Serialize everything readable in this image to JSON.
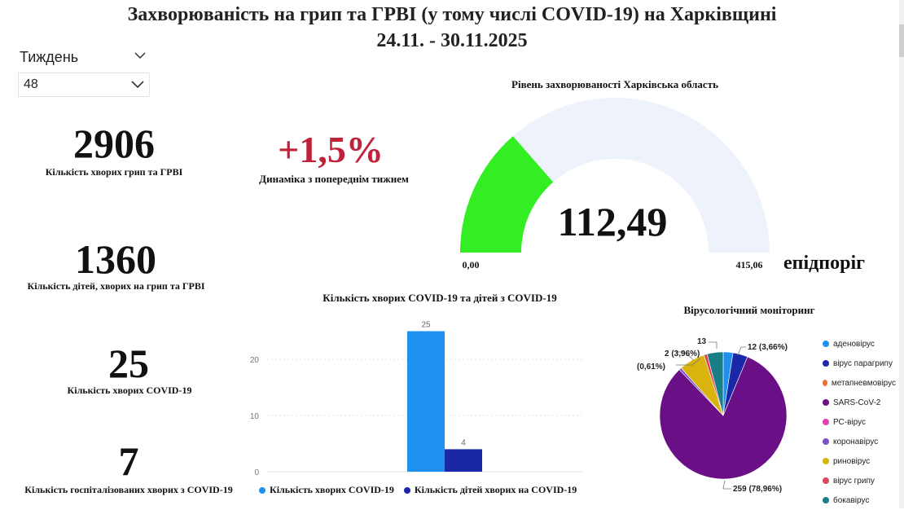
{
  "header": {
    "title": "Захворюваність на грип та ГРВІ (у тому числі COVID-19) на Харківщині",
    "period": "24.11. - 30.11.2025"
  },
  "week_filter": {
    "label": "Тиждень",
    "selected": "48"
  },
  "kpis": {
    "flu_arvi": {
      "value": "2906",
      "caption": "Кількість хворих грип та ГРВІ"
    },
    "children_flu_arvi": {
      "value": "1360",
      "caption": "Кількість дітей, хворих на грип та ГРВІ"
    },
    "covid": {
      "value": "25",
      "caption": "Кількість хворих COVID-19"
    },
    "covid_hospitalized": {
      "value": "7",
      "caption": "Кількість госпіталізованих хворих з COVID-19"
    },
    "dynamics": {
      "value": "+1,5%",
      "caption": "Динаміка з попереднім тижнем",
      "color": "#c0223a"
    }
  },
  "gauge": {
    "title": "Рівень захворюваності Харківська область",
    "value_label": "112,49",
    "value": 112.49,
    "min_label": "0,00",
    "min": 0,
    "max_label": "415,06",
    "max": 415.06,
    "threshold_label": "епідпоріг",
    "fill_color": "#33ee22",
    "track_color": "#eef2fa"
  },
  "chart_data": [
    {
      "type": "bar",
      "title": "Кількість хворих COVID-19 та дітей з COVID-19",
      "y_ticks": [
        "0",
        "10",
        "20"
      ],
      "ylim": [
        0,
        25
      ],
      "grid": true,
      "legend_position": "bottom",
      "series": [
        {
          "name": "Кількість хворих COVID-19",
          "value": 25,
          "value_label": "25",
          "color": "#1e90f0"
        },
        {
          "name": "Кількість дітей хворих на COVID-19",
          "value": 4,
          "value_label": "4",
          "color": "#1a28a8"
        }
      ]
    },
    {
      "type": "pie",
      "title": "Вірусологічний моніторинг",
      "legend_position": "right",
      "slices": [
        {
          "name": "аденовірус",
          "value": 2.4,
          "color": "#1e90f0"
        },
        {
          "name": "вірус парагрипу",
          "value": 3.66,
          "color": "#1a28a8"
        },
        {
          "name": "метапневмовірус",
          "value": 0,
          "color": "#e8703a"
        },
        {
          "name": "SARS-CoV-2",
          "value": 78.96,
          "color": "#6a0f86"
        },
        {
          "name": "РС-вірус",
          "value": 0,
          "color": "#e040b0"
        },
        {
          "name": "коронавірус",
          "value": 0.61,
          "color": "#7b52c8"
        },
        {
          "name": "риновірус",
          "value": 6.4,
          "color": "#d8b40c"
        },
        {
          "name": "вірус грипу",
          "value": 0.8,
          "color": "#d84a5a"
        },
        {
          "name": "бокавірус",
          "value": 3.96,
          "color": "#1a7e86"
        }
      ],
      "data_labels": {
        "top": "13",
        "paragrip": "12 (3,66%)",
        "left_a": "2 (3,96%)",
        "left_b": "(0,61%)",
        "bottom": "259 (78,96%)"
      }
    }
  ]
}
